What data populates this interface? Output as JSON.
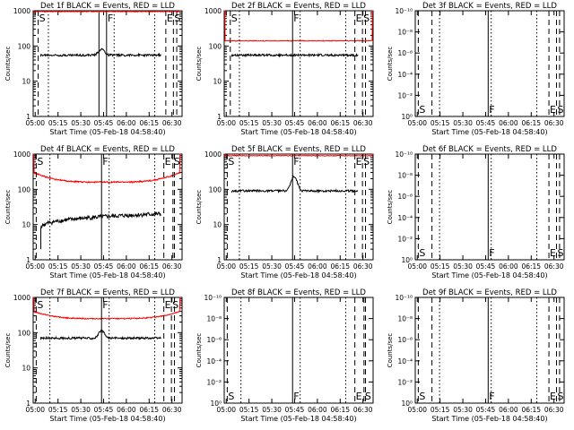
{
  "figure": {
    "xlabel": "Start Time (05-Feb-18 04:58:40)",
    "ylabel": "Counts/sec",
    "x_ticks": [
      "05:00",
      "05:15",
      "05:30",
      "05:45",
      "06:00",
      "06:15",
      "06:30"
    ],
    "x_ticks_left": [
      "05:00",
      "05:15",
      "05:30",
      "05:45",
      "06:00",
      "06:15",
      "06:30"
    ],
    "colors": {
      "events": "#000000",
      "lld": "#ff0000"
    }
  },
  "chart_data": [
    {
      "type": "line",
      "title": "Det 1f BLACK = Events, RED = LLD",
      "yscale": "log",
      "ylim": [
        1,
        1000
      ],
      "xlim_min": [
        0,
        98
      ],
      "y_ticks": [
        "1",
        "10",
        "100",
        "1000"
      ],
      "markers": [
        {
          "label": "S",
          "x": 3.3,
          "style": "dashed"
        },
        {
          "label": "F",
          "x": 48.3,
          "style": "solid"
        },
        {
          "label": "E",
          "x": 87.3,
          "style": "dashed"
        },
        {
          "label": "S",
          "x": 92.3,
          "style": "dashed"
        }
      ],
      "extra_lines": [
        {
          "x": 10,
          "style": "dotted"
        },
        {
          "x": 43.3,
          "style": "solid"
        },
        {
          "x": 53.3,
          "style": "dotted"
        },
        {
          "x": 80,
          "style": "dotted"
        },
        {
          "x": 94.5,
          "style": "dashed"
        }
      ],
      "series": [
        {
          "color": "events",
          "x_range": [
            5,
            84
          ],
          "profile": "flat",
          "base": 55,
          "noise": 0.03,
          "bump": {
            "center": 45,
            "height": 1.5,
            "width": 2.5
          }
        },
        {
          "color": "lld",
          "x_range": [
            0,
            97
          ],
          "profile": "flat",
          "base": 950,
          "noise": 0.01,
          "edges": "high"
        }
      ]
    },
    {
      "type": "line",
      "title": "Det 2f BLACK = Events, RED = LLD",
      "yscale": "log",
      "ylim": [
        1,
        1000
      ],
      "y_ticks": [
        "1",
        "10",
        "100",
        "1000"
      ],
      "markers": [
        {
          "label": "S",
          "x": 4,
          "style": "dashed"
        },
        {
          "label": "F",
          "x": 45,
          "style": "solid"
        },
        {
          "label": "E",
          "x": 86,
          "style": "dashed"
        },
        {
          "label": "S",
          "x": 91,
          "style": "dashed"
        }
      ],
      "extra_lines": [
        {
          "x": 10,
          "style": "dotted"
        },
        {
          "x": 50,
          "style": "dotted"
        },
        {
          "x": 80,
          "style": "dotted"
        },
        {
          "x": 93,
          "style": "dashed"
        }
      ],
      "series": [
        {
          "color": "events",
          "x_range": [
            5,
            88
          ],
          "profile": "flat",
          "base": 55,
          "noise": 0.03
        },
        {
          "color": "lld",
          "x_range": [
            0,
            98
          ],
          "profile": "flat",
          "base": 140,
          "noise": 0.01,
          "edges": "high"
        }
      ]
    },
    {
      "type": "line",
      "title": "Det 3f BLACK = Events, RED = LLD",
      "yscale": "log",
      "ylim_exp": [
        -10,
        0
      ],
      "y_ticks": [
        "10⁰",
        "10⁻²",
        "10⁻⁴",
        "10⁻⁶",
        "10⁻⁸",
        "10⁻¹⁰"
      ],
      "markers": [
        {
          "label": "S",
          "x": 2,
          "style": "dashed"
        },
        {
          "label": "F",
          "x": 48,
          "style": "solid"
        },
        {
          "label": "E",
          "x": 88,
          "style": "dashed"
        },
        {
          "label": "S",
          "x": 93,
          "style": "dashed"
        }
      ],
      "extra_lines": [
        {
          "x": 11,
          "style": "dashed"
        },
        {
          "x": 16,
          "style": "dotted"
        },
        {
          "x": 50,
          "style": "dotted"
        },
        {
          "x": 80,
          "style": "dotted"
        },
        {
          "x": 95,
          "style": "dashed"
        }
      ],
      "series": []
    },
    {
      "type": "line",
      "title": "Det 4f BLACK = Events, RED = LLD",
      "yscale": "log",
      "ylim": [
        1,
        1000
      ],
      "y_ticks": [
        "1",
        "10",
        "100",
        "1000"
      ],
      "markers": [
        {
          "label": "S",
          "x": 2,
          "style": "dashed"
        },
        {
          "label": "F",
          "x": 45,
          "style": "solid"
        },
        {
          "label": "E",
          "x": 86,
          "style": "dashed"
        },
        {
          "label": "S",
          "x": 92,
          "style": "dashed"
        }
      ],
      "extra_lines": [
        {
          "x": 11,
          "style": "dotted"
        },
        {
          "x": 50,
          "style": "dotted"
        },
        {
          "x": 80,
          "style": "dotted"
        },
        {
          "x": 93,
          "style": "dashed"
        }
      ],
      "series": [
        {
          "color": "events",
          "x_range": [
            5,
            84
          ],
          "profile": "rise",
          "base": 20,
          "start": 8,
          "noise": 0.06
        },
        {
          "color": "lld",
          "x_range": [
            0,
            97
          ],
          "profile": "sag",
          "base": 160,
          "edge_val": 300,
          "noise": 0.02,
          "edges": "high"
        }
      ]
    },
    {
      "type": "line",
      "title": "Det 5f BLACK = Events, RED = LLD",
      "yscale": "log",
      "ylim": [
        1,
        1000
      ],
      "y_ticks": [
        "1",
        "10",
        "100",
        "1000"
      ],
      "markers": [
        {
          "label": "S",
          "x": 2,
          "style": "dashed"
        },
        {
          "label": "F",
          "x": 45,
          "style": "solid"
        },
        {
          "label": "E",
          "x": 86,
          "style": "dashed"
        },
        {
          "label": "S",
          "x": 91,
          "style": "dashed"
        }
      ],
      "extra_lines": [
        {
          "x": 10,
          "style": "dotted"
        },
        {
          "x": 50,
          "style": "dotted"
        },
        {
          "x": 80,
          "style": "dotted"
        },
        {
          "x": 93,
          "style": "dashed"
        }
      ],
      "series": [
        {
          "color": "events",
          "x_range": [
            5,
            88
          ],
          "profile": "flat",
          "base": 90,
          "noise": 0.03,
          "bump": {
            "center": 46,
            "height": 2.6,
            "width": 2.5
          }
        },
        {
          "color": "lld",
          "x_range": [
            0,
            98
          ],
          "profile": "flat",
          "base": 900,
          "noise": 0.01,
          "edges": "high"
        }
      ]
    },
    {
      "type": "line",
      "title": "Det 6f BLACK = Events, RED = LLD",
      "yscale": "log",
      "ylim_exp": [
        -10,
        0
      ],
      "y_ticks": [
        "10⁰",
        "10⁻²",
        "10⁻⁴",
        "10⁻⁶",
        "10⁻⁸",
        "10⁻¹⁰"
      ],
      "markers": [
        {
          "label": "S",
          "x": 2,
          "style": "dashed"
        },
        {
          "label": "F",
          "x": 48,
          "style": "solid"
        },
        {
          "label": "E",
          "x": 88,
          "style": "dashed"
        },
        {
          "label": "S",
          "x": 93,
          "style": "dashed"
        }
      ],
      "extra_lines": [
        {
          "x": 11,
          "style": "dashed"
        },
        {
          "x": 16,
          "style": "dotted"
        },
        {
          "x": 50,
          "style": "dotted"
        },
        {
          "x": 80,
          "style": "dotted"
        },
        {
          "x": 95,
          "style": "dashed"
        }
      ],
      "series": []
    },
    {
      "type": "line",
      "title": "Det 7f BLACK = Events, RED = LLD",
      "yscale": "log",
      "ylim": [
        1,
        1000
      ],
      "y_ticks": [
        "1",
        "10",
        "100",
        "1000"
      ],
      "markers": [
        {
          "label": "S",
          "x": 2,
          "style": "dashed"
        },
        {
          "label": "F",
          "x": 45,
          "style": "solid"
        },
        {
          "label": "E",
          "x": 86,
          "style": "dashed"
        },
        {
          "label": "S",
          "x": 91,
          "style": "dashed"
        }
      ],
      "extra_lines": [
        {
          "x": 11,
          "style": "dotted"
        },
        {
          "x": 50,
          "style": "dotted"
        },
        {
          "x": 80,
          "style": "dotted"
        },
        {
          "x": 93,
          "style": "dashed"
        }
      ],
      "series": [
        {
          "color": "events",
          "x_range": [
            5,
            84
          ],
          "profile": "flat",
          "base": 70,
          "noise": 0.03,
          "bump": {
            "center": 45,
            "height": 1.6,
            "width": 2.5
          }
        },
        {
          "color": "lld",
          "x_range": [
            0,
            97
          ],
          "profile": "sag",
          "base": 250,
          "edge_val": 400,
          "noise": 0.015,
          "edges": "high"
        }
      ]
    },
    {
      "type": "line",
      "title": "Det 8f BLACK = Events, RED = LLD",
      "yscale": "log",
      "ylim_exp": [
        -10,
        0
      ],
      "y_ticks": [
        "10⁰",
        "10⁻²",
        "10⁻⁴",
        "10⁻⁶",
        "10⁻⁸",
        "10⁻¹⁰"
      ],
      "markers": [
        {
          "label": "S",
          "x": 2,
          "style": "dashed"
        },
        {
          "label": "F",
          "x": 45,
          "style": "solid"
        },
        {
          "label": "E",
          "x": 86,
          "style": "dashed"
        },
        {
          "label": "S",
          "x": 92,
          "style": "dashed"
        }
      ],
      "extra_lines": [
        {
          "x": 11,
          "style": "dotted"
        },
        {
          "x": 50,
          "style": "dotted"
        },
        {
          "x": 80,
          "style": "dotted"
        },
        {
          "x": 93,
          "style": "dashed"
        }
      ],
      "series": []
    },
    {
      "type": "line",
      "title": "Det 9f BLACK = Events, RED = LLD",
      "yscale": "log",
      "ylim_exp": [
        -10,
        0
      ],
      "y_ticks": [
        "10⁰",
        "10⁻²",
        "10⁻⁴",
        "10⁻⁶",
        "10⁻⁸",
        "10⁻¹⁰"
      ],
      "markers": [
        {
          "label": "S",
          "x": 2,
          "style": "dashed"
        },
        {
          "label": "F",
          "x": 48,
          "style": "solid"
        },
        {
          "label": "E",
          "x": 88,
          "style": "dashed"
        },
        {
          "label": "S",
          "x": 93,
          "style": "dashed"
        }
      ],
      "extra_lines": [
        {
          "x": 11,
          "style": "dashed"
        },
        {
          "x": 16,
          "style": "dotted"
        },
        {
          "x": 50,
          "style": "dotted"
        },
        {
          "x": 80,
          "style": "dotted"
        },
        {
          "x": 95,
          "style": "dashed"
        }
      ],
      "series": []
    }
  ]
}
